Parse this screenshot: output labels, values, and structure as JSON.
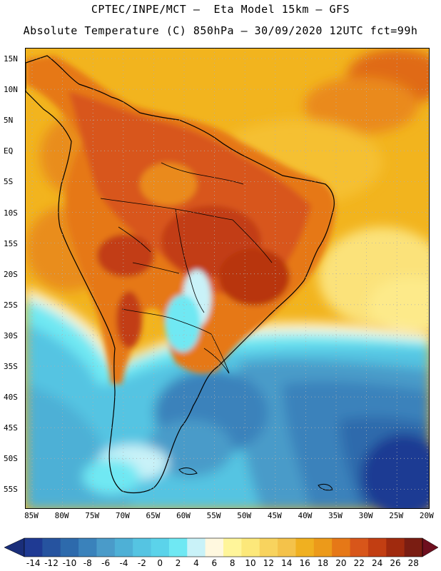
{
  "header": {
    "title_line1": "CPTEC/INPE/MCT –  Eta Model 15km – GFS",
    "title_line2": "Absolute Temperature (C) 850hPa – 30/09/2020 12UTC fct=99h"
  },
  "map": {
    "lat_labels": [
      "15N",
      "10N",
      "5N",
      "EQ",
      "5S",
      "10S",
      "15S",
      "20S",
      "25S",
      "30S",
      "35S",
      "40S",
      "45S",
      "50S",
      "55S"
    ],
    "lon_labels": [
      "85W",
      "80W",
      "75W",
      "70W",
      "65W",
      "60W",
      "55W",
      "50W",
      "45W",
      "40W",
      "35W",
      "30W",
      "25W",
      "20W"
    ],
    "field_colors": {
      "sea_warm": "#f2b41e",
      "land_hot": "#d8621c",
      "land_hotter": "#c24a14",
      "coast_line": "#000000",
      "grid_line": "#b0b0b0"
    }
  },
  "colorbar": {
    "labels": [
      "-14",
      "-12",
      "-10",
      "-8",
      "-6",
      "-4",
      "-2",
      "0",
      "2",
      "4",
      "6",
      "8",
      "10",
      "12",
      "14",
      "16",
      "18",
      "20",
      "22",
      "24",
      "26",
      "28"
    ],
    "colors": [
      "#1f3a93",
      "#26539f",
      "#2d6aac",
      "#3a82bb",
      "#4a9bc9",
      "#4eb0d6",
      "#55c4e2",
      "#5bd3ea",
      "#6fe8f3",
      "#c9f2f8",
      "#fff8df",
      "#fff59a",
      "#fce87a",
      "#f8d35e",
      "#f4c24a",
      "#f0b020",
      "#ec9a1a",
      "#e67817",
      "#d8561a",
      "#c23e12",
      "#a02a0e",
      "#7a1d12"
    ],
    "under_color": "#1a2e7a",
    "over_color": "#6e0f1e"
  }
}
